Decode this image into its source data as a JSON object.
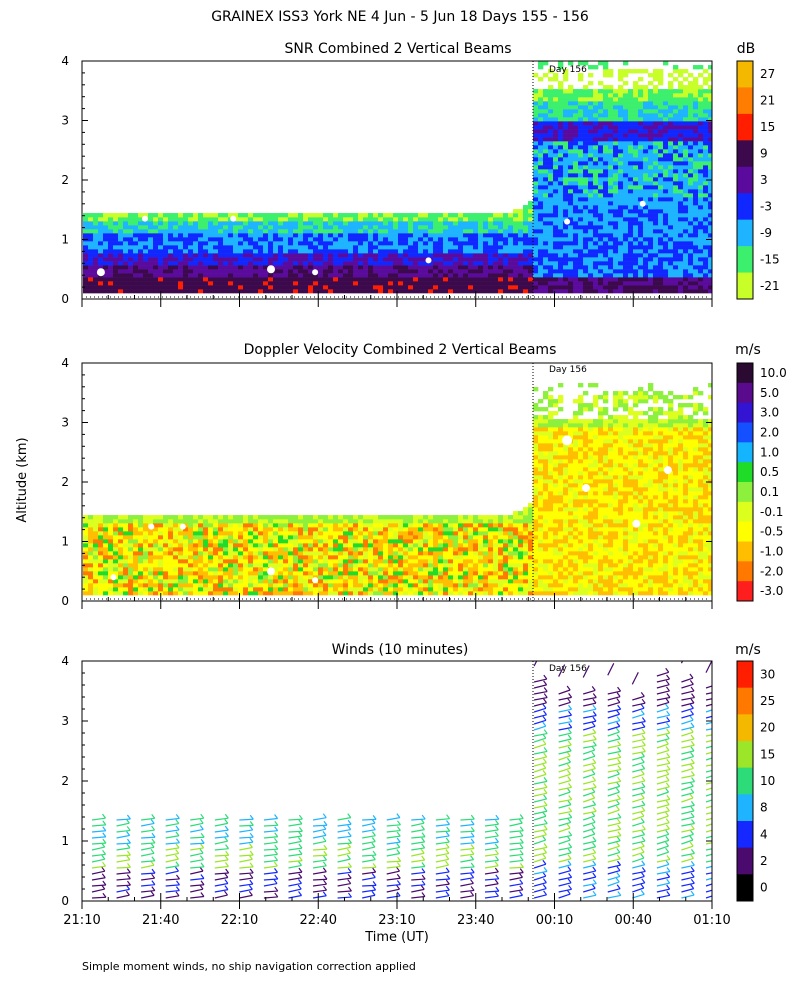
{
  "figure": {
    "title": "GRAINEX ISS3 York NE    4 Jun  -  5 Jun 18 Days 155 - 156",
    "ylabel": "Altitude (km)",
    "xlabel": "Time (UT)",
    "footnote": "Simple moment winds, no ship navigation correction applied",
    "x_ticks": [
      "21:10",
      "21:40",
      "22:10",
      "22:40",
      "23:10",
      "23:40",
      "00:10",
      "00:40",
      "01:10"
    ],
    "day_marker_label": "Day 156"
  },
  "chart_data": [
    {
      "type": "heatmap",
      "title": "SNR Combined 2 Vertical Beams",
      "xlabel": "Time (UT)",
      "ylabel": "Altitude (km)",
      "x_range": [
        "21:10",
        "01:10"
      ],
      "ylim": [
        0,
        4
      ],
      "y_ticks": [
        "0",
        "1",
        "2",
        "3",
        "4"
      ],
      "colorbar_unit": "dB",
      "colorbar_labels": [
        "27",
        "21",
        "15",
        "9",
        "3",
        "-3",
        "-9",
        "-15",
        "-21"
      ],
      "colorbar_colors": [
        "#f5b800",
        "#ff7d00",
        "#ff1e00",
        "#3c0a4c",
        "#5a0a9c",
        "#1028ff",
        "#1eb4ff",
        "#3cf06e",
        "#c8ff28"
      ],
      "data_top_km": {
        "before_day156": 1.4,
        "after_day156": 4.0
      },
      "day_marker": "00:00"
    },
    {
      "type": "heatmap",
      "title": "Doppler Velocity Combined 2 Vertical Beams",
      "xlabel": "Time (UT)",
      "ylabel": "Altitude (km)",
      "x_range": [
        "21:10",
        "01:10"
      ],
      "ylim": [
        0,
        4
      ],
      "y_ticks": [
        "0",
        "1",
        "2",
        "3",
        "4"
      ],
      "colorbar_unit": "m/s",
      "colorbar_labels": [
        "10.0",
        "5.0",
        "3.0",
        "2.0",
        "1.0",
        "0.5",
        "0.1",
        "-0.1",
        "-0.5",
        "-1.0",
        "-2.0",
        "-3.0"
      ],
      "colorbar_colors": [
        "#2a0a30",
        "#5a0a8c",
        "#3214d2",
        "#1450ff",
        "#14b4ff",
        "#1edc28",
        "#8cf03c",
        "#dcff1e",
        "#ffff00",
        "#ffbe00",
        "#ff7800",
        "#ff1e1e"
      ],
      "data_top_km": {
        "before_day156": 1.4,
        "after_day156": 3.6
      },
      "day_marker": "00:00"
    },
    {
      "type": "scatter",
      "title": "Winds (10 minutes)",
      "xlabel": "Time (UT)",
      "ylabel": "Altitude (km)",
      "x_range": [
        "21:10",
        "01:10"
      ],
      "ylim": [
        0,
        4
      ],
      "y_ticks": [
        "0",
        "1",
        "2",
        "3",
        "4"
      ],
      "colorbar_unit": "m/s",
      "colorbar_labels": [
        "30",
        "25",
        "20",
        "15",
        "10",
        "8",
        "4",
        "2",
        "0"
      ],
      "colorbar_colors": [
        "#ff1e00",
        "#ff7800",
        "#f5b800",
        "#9be628",
        "#2ddc78",
        "#1eb4ff",
        "#1428ff",
        "#4a0a6e",
        "#000000"
      ],
      "data_top_km": {
        "before_day156": 1.4,
        "after_day156": 4.0
      },
      "day_marker": "00:00"
    }
  ]
}
